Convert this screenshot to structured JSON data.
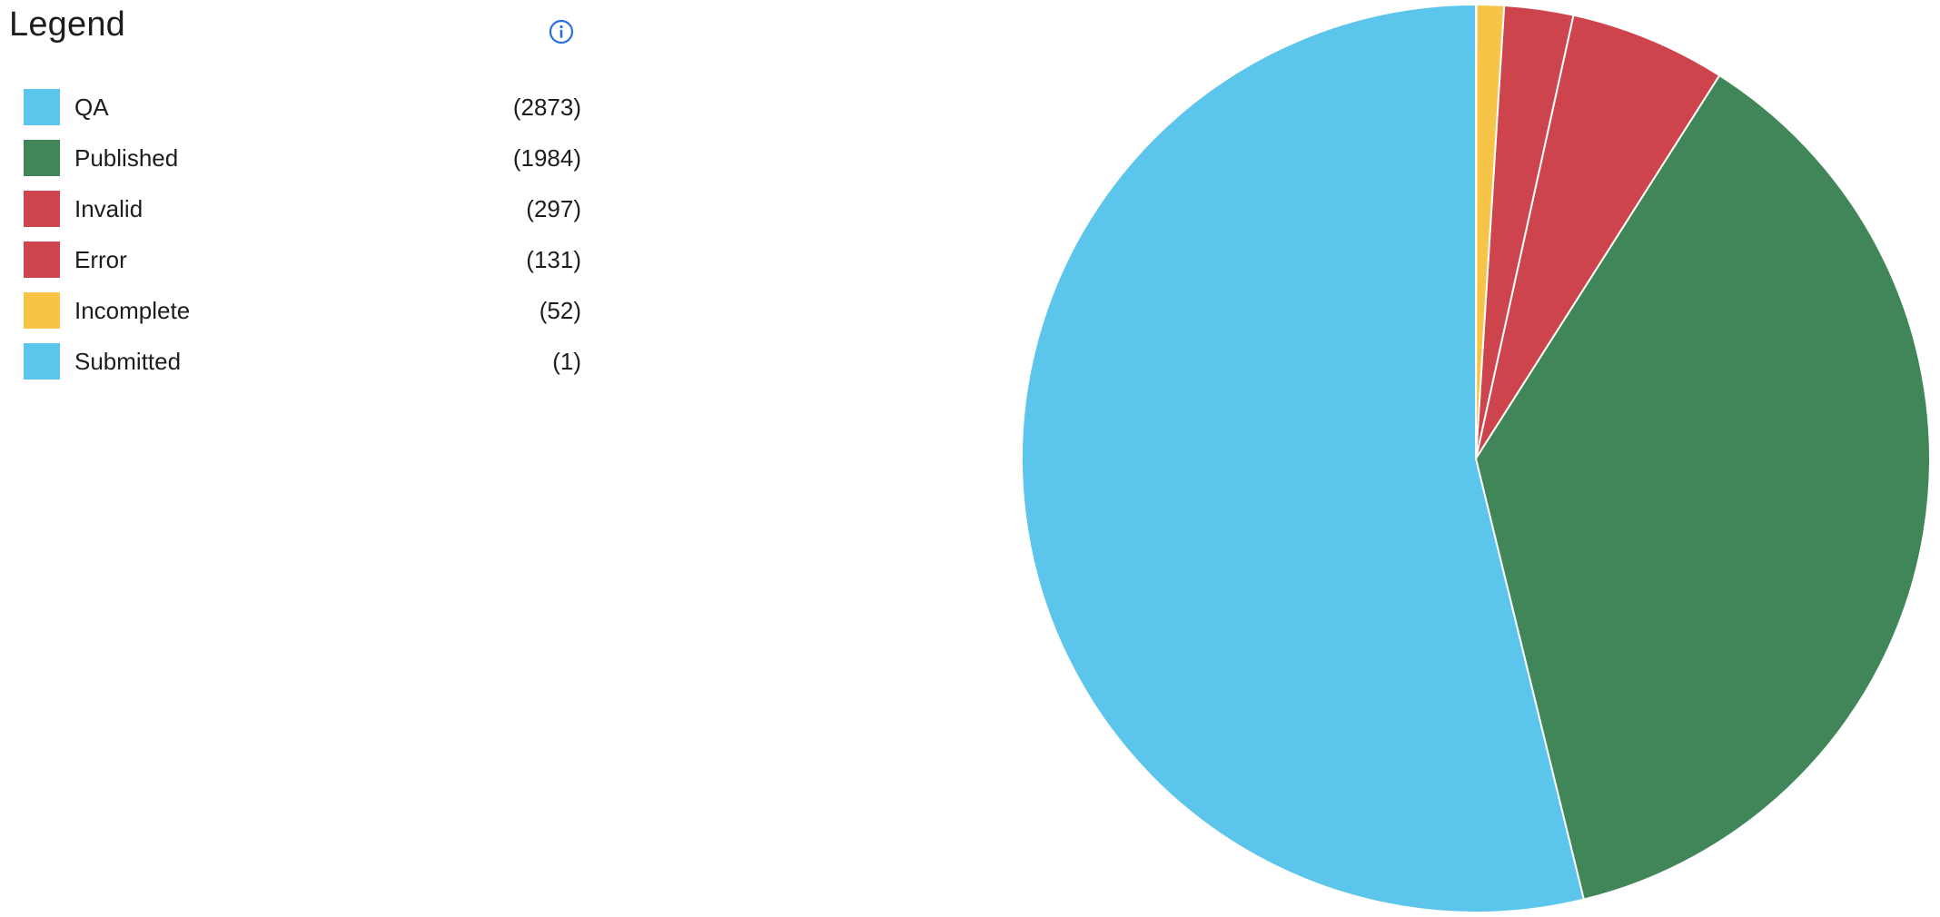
{
  "legend": {
    "title": "Legend",
    "info_icon": "info-circle-icon"
  },
  "chart_data": {
    "type": "pie",
    "categories": [
      "QA",
      "Published",
      "Invalid",
      "Error",
      "Incomplete",
      "Submitted"
    ],
    "values": [
      2873,
      1984,
      297,
      131,
      52,
      1
    ],
    "value_labels": [
      "(2873)",
      "(1984)",
      "(297)",
      "(131)",
      "(52)",
      "(1)"
    ],
    "colors": [
      "#5bc5ec",
      "#408658",
      "#cd444d",
      "#cd444d",
      "#f6c547",
      "#5bc5ec"
    ],
    "start_angle": "12 o'clock",
    "direction": "counterclockwise",
    "legend_position": "left",
    "slice_border_color": "#ffffff"
  }
}
